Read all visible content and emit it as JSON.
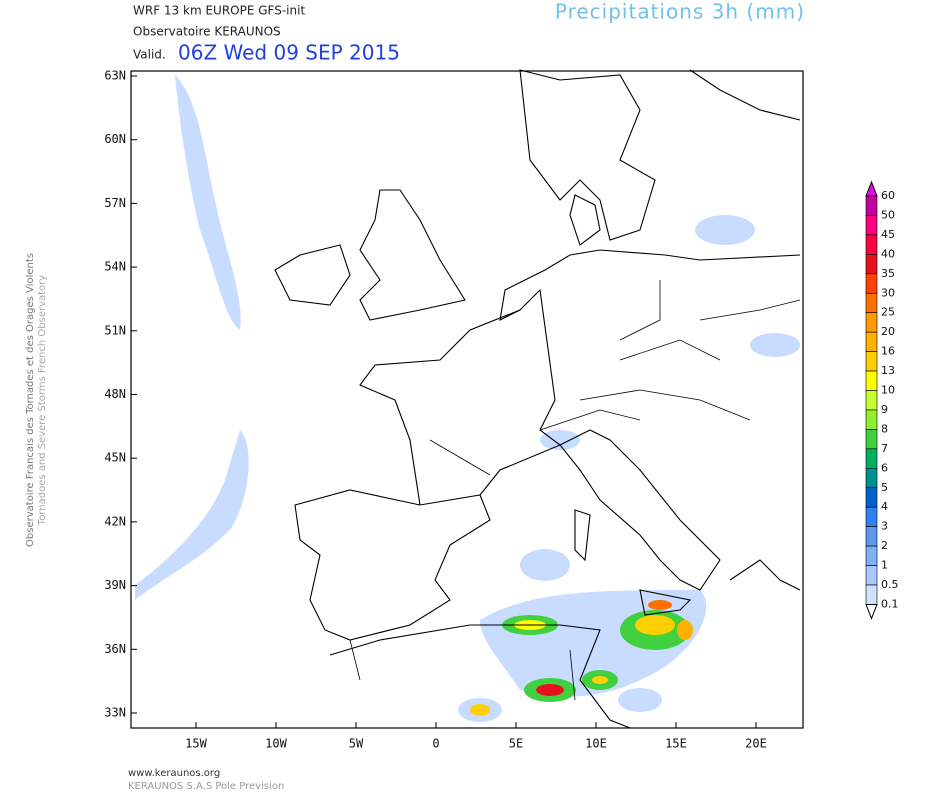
{
  "header": {
    "model": "WRF 13 km EUROPE  GFS-init",
    "source": "Observatoire KERAUNOS",
    "valid_prefix": "Valid.",
    "valid_time": "06Z Wed 09 SEP 2015",
    "product": "Precipitations 3h (mm)"
  },
  "map": {
    "lat_labels": [
      "63N",
      "60N",
      "57N",
      "54N",
      "51N",
      "48N",
      "45N",
      "42N",
      "39N",
      "36N",
      "33N"
    ],
    "lon_labels": [
      "15W",
      "10W",
      "5W",
      "0",
      "5E",
      "10E",
      "15E",
      "20E"
    ]
  },
  "colorbar": {
    "labels": [
      "60",
      "50",
      "45",
      "40",
      "35",
      "30",
      "25",
      "20",
      "16",
      "13",
      "10",
      "9",
      "8",
      "7",
      "6",
      "5",
      "4",
      "3",
      "2",
      "1",
      "0.5",
      "0.1"
    ],
    "colors": [
      "#e010e0",
      "#c000a0",
      "#ff0080",
      "#ff0040",
      "#e81020",
      "#ff4000",
      "#ff7000",
      "#ff9900",
      "#ffb000",
      "#ffd000",
      "#ffff00",
      "#c8ff30",
      "#90ee30",
      "#40d040",
      "#00b060",
      "#009090",
      "#0060d0",
      "#3080f0",
      "#6098f0",
      "#80b0f8",
      "#a8c8ff",
      "#d0e0ff"
    ]
  },
  "side_text": [
    "Observatoire Francais des Tornades et des Orages Violents",
    "Tornadoes and Severe Storms French Observatory"
  ],
  "footer": [
    "www.keraunos.org",
    "KERAUNOS S.A.S Pole Prevision"
  ]
}
